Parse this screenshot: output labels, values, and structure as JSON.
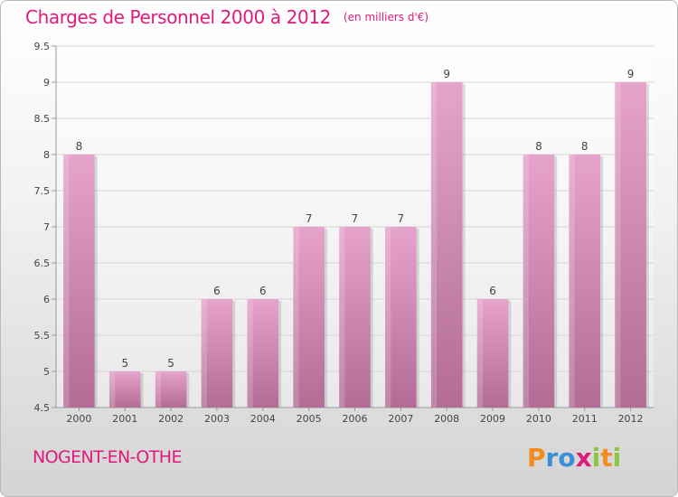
{
  "title": "Charges de Personnel 2000 à 2012",
  "unit_note": "(en milliers d'€)",
  "location": "NOGENT-EN-OTHE",
  "logo": {
    "letters": [
      "P",
      "r",
      "o",
      "x",
      "i",
      "t",
      "i"
    ],
    "colors": [
      "#f28c1e",
      "#3a8fd6",
      "#3a8fd6",
      "#e2197c",
      "#8cc63f",
      "#f28c1e",
      "#8cc63f"
    ]
  },
  "colors": {
    "accent": "#e2197c",
    "bar_top": "#e6a3cb",
    "bar_bottom": "#b26c96",
    "grid": "#d6d6d6"
  },
  "chart_data": {
    "type": "bar",
    "categories": [
      "2000",
      "2001",
      "2002",
      "2003",
      "2004",
      "2005",
      "2006",
      "2007",
      "2008",
      "2009",
      "2010",
      "2011",
      "2012"
    ],
    "values": [
      8,
      5,
      5,
      6,
      6,
      7,
      7,
      7,
      9,
      6,
      8,
      8,
      9
    ],
    "data_labels": [
      "8",
      "5",
      "5",
      "6",
      "6",
      "7",
      "7",
      "7",
      "9",
      "6",
      "8",
      "8",
      "9"
    ],
    "title": "Charges de Personnel 2000 à 2012",
    "ylim": [
      4.5,
      9.5
    ],
    "yticks": [
      4.5,
      5,
      5.5,
      6,
      6.5,
      7,
      7.5,
      8,
      8.5,
      9,
      9.5
    ],
    "ytick_labels": [
      "4.5",
      "5",
      "5.5",
      "6",
      "6.5",
      "7",
      "7.5",
      "8",
      "8.5",
      "9",
      "9.5"
    ],
    "grid": true,
    "legend": "none"
  }
}
